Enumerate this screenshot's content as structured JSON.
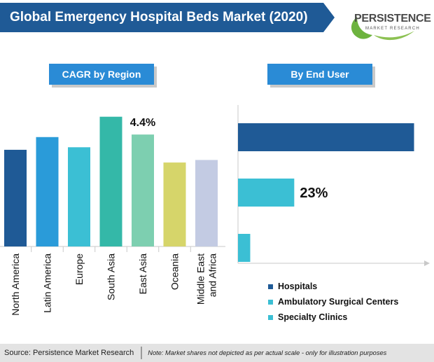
{
  "header": {
    "title": "Global Emergency Hospital Beds Market (2020)"
  },
  "logo": {
    "name": "PERSISTENCE",
    "subtitle": "MARKET RESEARCH"
  },
  "colors": {
    "title_banner": "#1f5a96",
    "section_label": "#2a8bd6",
    "footer_bg": "#e3e3e3"
  },
  "chart_data": [
    {
      "type": "bar",
      "title": "CAGR by Region",
      "categories": [
        "North America",
        "Latin America",
        "Europe",
        "South Asia",
        "East Asia",
        "Oceania",
        "Middle East and Africa"
      ],
      "category_lines": [
        [
          "North America"
        ],
        [
          "Latin America"
        ],
        [
          "Europe"
        ],
        [
          "South Asia"
        ],
        [
          "East Asia"
        ],
        [
          "Oceania"
        ],
        [
          "Middle East",
          "and Africa"
        ]
      ],
      "values": [
        3.8,
        4.3,
        3.9,
        5.1,
        4.4,
        3.3,
        3.4
      ],
      "colors": [
        "#1f5a96",
        "#2a9bd9",
        "#3bbfd4",
        "#34b8a8",
        "#7dcfb0",
        "#d6d56a",
        "#c3cbe3"
      ],
      "data_labels": [
        {
          "category": "East Asia",
          "text": "4.4%"
        }
      ],
      "ylim": [
        0,
        6
      ],
      "xlabel": "",
      "ylabel": "",
      "grid": false
    },
    {
      "type": "bar",
      "orientation": "horizontal",
      "title": "By End User",
      "categories": [
        "Hospitals",
        "Ambulatory Surgical Centers",
        "Specialty Clinics"
      ],
      "values": [
        72,
        23,
        5
      ],
      "colors": [
        "#1f5a96",
        "#3bbfd4",
        "#3bbfd4"
      ],
      "data_labels": [
        {
          "category": "Ambulatory Surgical Centers",
          "text": "23%"
        }
      ],
      "xlim": [
        0,
        78
      ],
      "legend_position": "bottom",
      "grid": false
    }
  ],
  "footer": {
    "source": "Source: Persistence Market Research",
    "note": "Note: Market shares not depicted as per actual scale - only for illustration purposes"
  }
}
